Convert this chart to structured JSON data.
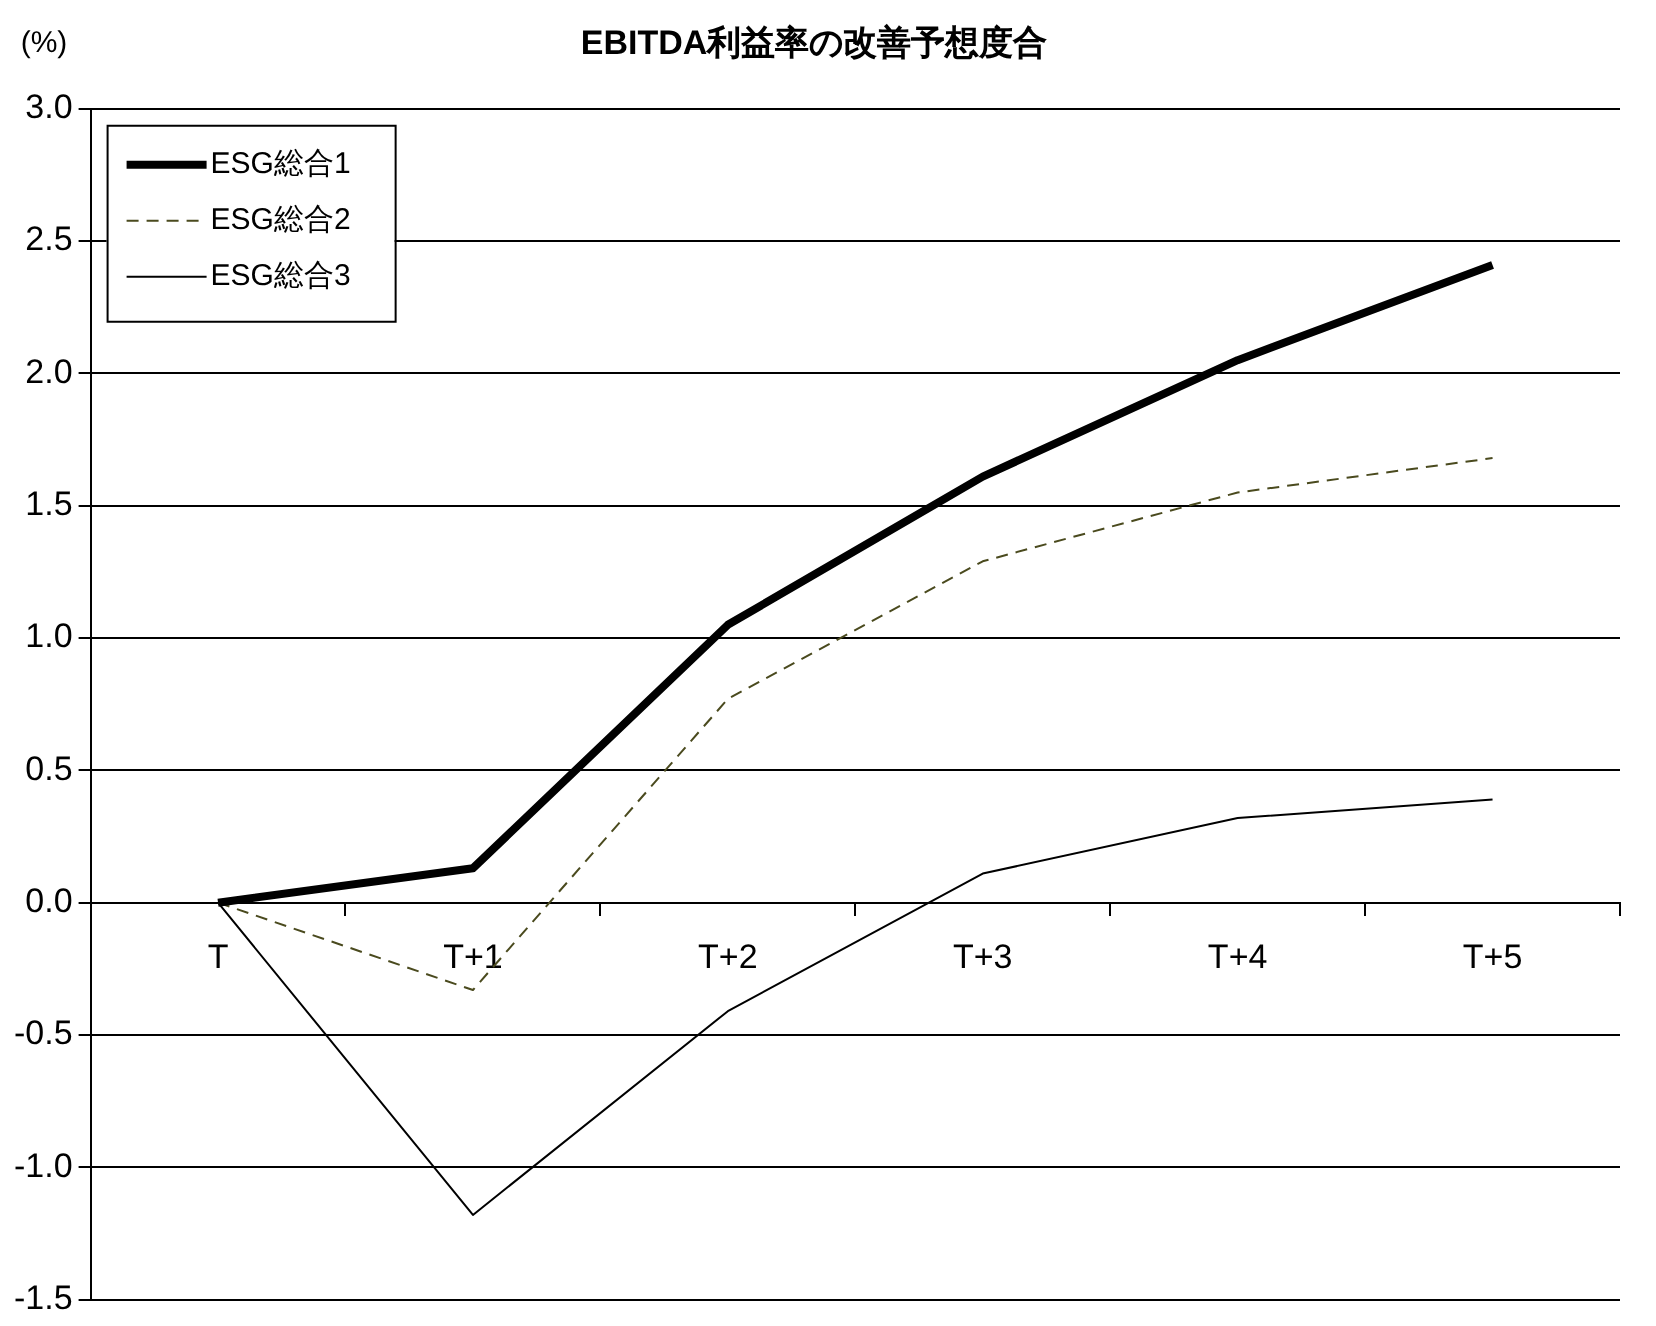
{
  "chart_data": {
    "type": "line",
    "title": "EBITDA利益率の改善予想度合",
    "ylabel": "(%)",
    "categories": [
      "T",
      "T+1",
      "T+2",
      "T+3",
      "T+4",
      "T+5"
    ],
    "series": [
      {
        "name": "ESG総合1",
        "color": "#000000",
        "values": [
          0,
          0.13,
          1.05,
          1.61,
          2.05,
          2.41
        ],
        "line_style": "solid"
      },
      {
        "name": "ESG総合2",
        "color": "#4a4a1e",
        "values": [
          0,
          -0.33,
          0.77,
          1.29,
          1.55,
          1.68
        ],
        "line_style": "dashed"
      },
      {
        "name": "ESG総合3",
        "color": "#000000",
        "values": [
          0,
          -1.18,
          -0.41,
          0.11,
          0.32,
          0.39
        ],
        "line_style": "solid"
      }
    ],
    "ylim": [
      -1.5,
      3.0
    ],
    "yticks": [
      {
        "value": -1.5,
        "label": "-1.5"
      },
      {
        "value": -1,
        "label": "-1.0"
      },
      {
        "value": -0.5,
        "label": "-0.5"
      },
      {
        "value": 0,
        "label": "0.0"
      },
      {
        "value": 0.5,
        "label": "0.5"
      },
      {
        "value": 1,
        "label": "1.0"
      },
      {
        "value": 1.5,
        "label": "1.5"
      },
      {
        "value": 2,
        "label": "2.0"
      },
      {
        "value": 2.5,
        "label": "2.5"
      },
      {
        "value": 3,
        "label": "3.0"
      }
    ],
    "grid": "y",
    "legend": "top left",
    "marker": "none"
  }
}
